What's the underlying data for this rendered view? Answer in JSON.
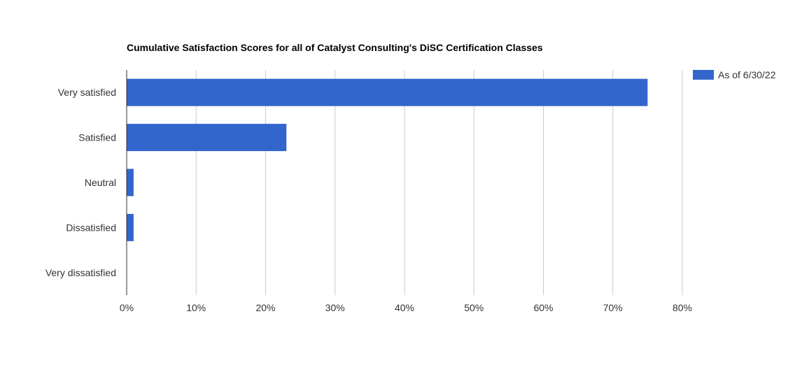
{
  "chart_data": {
    "type": "bar",
    "orientation": "horizontal",
    "title": "Cumulative Satisfaction Scores for all of Catalyst Consulting's DiSC Certification Classes",
    "categories": [
      "Very satisfied",
      "Satisfied",
      "Neutral",
      "Dissatisfied",
      "Very dissatisfied"
    ],
    "series": [
      {
        "name": "As of 6/30/22",
        "values": [
          0.75,
          0.23,
          0.01,
          0.01,
          0.0
        ],
        "color": "#3366cc"
      }
    ],
    "x_ticks": [
      0,
      0.1,
      0.2,
      0.3,
      0.4,
      0.5,
      0.6,
      0.7,
      0.8
    ],
    "x_tick_labels": [
      "0%",
      "10%",
      "20%",
      "30%",
      "40%",
      "50%",
      "60%",
      "70%",
      "80%"
    ],
    "xlim": [
      0,
      0.8
    ],
    "xlabel": "",
    "ylabel": "",
    "grid": true,
    "legend_position": "top-right",
    "gridline_color": "#cccccc",
    "axis_color": "#333333"
  }
}
